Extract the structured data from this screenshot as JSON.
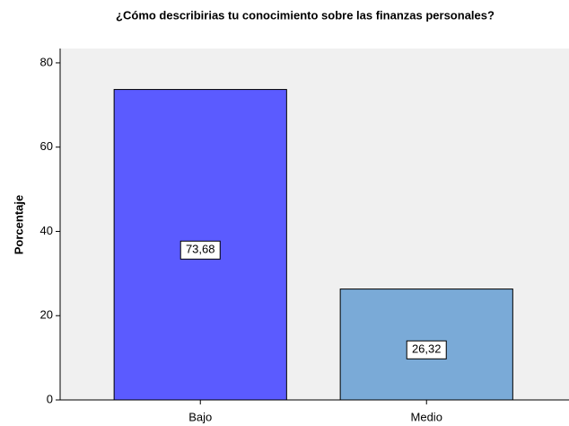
{
  "chart_data": {
    "type": "bar",
    "title": "¿Cómo describirias tu conocimiento sobre las finanzas personales?",
    "y_label": "Porcentaje",
    "categories": [
      "Bajo",
      "Medio"
    ],
    "values": [
      73.68,
      26.32
    ],
    "value_labels": [
      "73,68",
      "26,32"
    ],
    "colors": [
      "#5b5bff",
      "#7aaad7"
    ],
    "ylim": [
      0,
      83.4
    ],
    "yticks": [
      0,
      20,
      40,
      60,
      80
    ],
    "grid": false
  }
}
